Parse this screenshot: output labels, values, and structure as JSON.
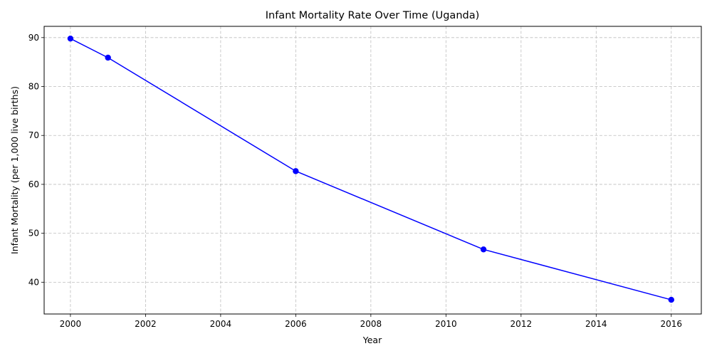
{
  "chart_data": {
    "type": "line",
    "title": "Infant Mortality Rate Over Time (Uganda)",
    "xlabel": "Year",
    "ylabel": "Infant Mortality (per 1,000 live births)",
    "xlim": [
      1999.3,
      2016.8
    ],
    "ylim": [
      33.5,
      92.3
    ],
    "x_ticks": [
      2000,
      2002,
      2004,
      2006,
      2008,
      2010,
      2012,
      2014,
      2016
    ],
    "y_ticks": [
      40,
      50,
      60,
      70,
      80,
      90
    ],
    "grid": true,
    "legend": "none",
    "series": [
      {
        "color": "#0000ff",
        "marker": "circle",
        "x": [
          2000,
          2001,
          2006,
          2011,
          2016
        ],
        "y": [
          89.8,
          85.9,
          62.7,
          46.7,
          36.4
        ]
      }
    ]
  }
}
